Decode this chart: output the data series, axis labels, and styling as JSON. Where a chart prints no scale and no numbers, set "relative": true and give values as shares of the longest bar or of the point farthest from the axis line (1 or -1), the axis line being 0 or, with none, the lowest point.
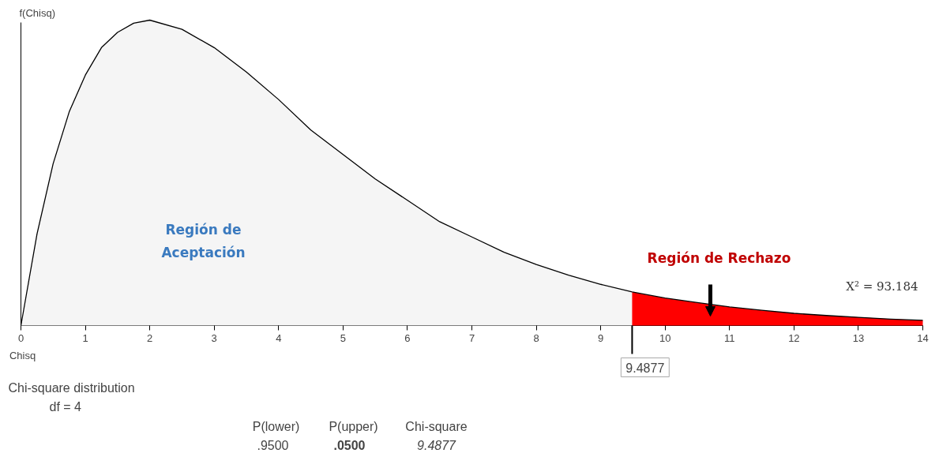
{
  "chart_data": {
    "type": "area",
    "relative": true,
    "xlabel": "Chisq",
    "ylabel": "f(Chisq)",
    "xlim": [
      0,
      14
    ],
    "xticks": [
      0,
      1,
      2,
      3,
      4,
      5,
      6,
      7,
      8,
      9,
      10,
      11,
      12,
      13,
      14
    ],
    "grid": false,
    "series": [
      {
        "color": "#f5f5f5",
        "x": [
          0,
          0.25,
          0.5,
          0.75,
          1,
          1.25,
          1.5,
          1.75,
          2,
          2.5,
          3,
          3.5,
          4,
          4.5,
          5,
          5.5,
          6,
          6.5,
          7,
          7.5,
          8,
          8.5,
          9,
          9.4877
        ],
        "values": [
          0,
          0.3,
          0.53,
          0.7,
          0.82,
          0.91,
          0.96,
          0.99,
          1,
          0.97,
          0.91,
          0.83,
          0.74,
          0.64,
          0.56,
          0.48,
          0.41,
          0.34,
          0.29,
          0.24,
          0.2,
          0.165,
          0.135,
          0.11
        ]
      },
      {
        "color": "#ff0000",
        "x": [
          9.4877,
          10,
          10.5,
          11,
          11.5,
          12,
          12.5,
          13,
          13.5,
          14
        ],
        "values": [
          0.11,
          0.09,
          0.075,
          0.061,
          0.05,
          0.04,
          0.033,
          0.027,
          0.021,
          0.017
        ]
      }
    ],
    "annotations": [
      "Región de Aceptación",
      "Región de Rechazo",
      "X² = 93.184",
      "9.4877",
      "Chi-square distribution",
      "df =  4",
      "P(lower)",
      ".9500",
      "P(upper)",
      ".0500",
      "Chi-square",
      "9.4877"
    ]
  }
}
